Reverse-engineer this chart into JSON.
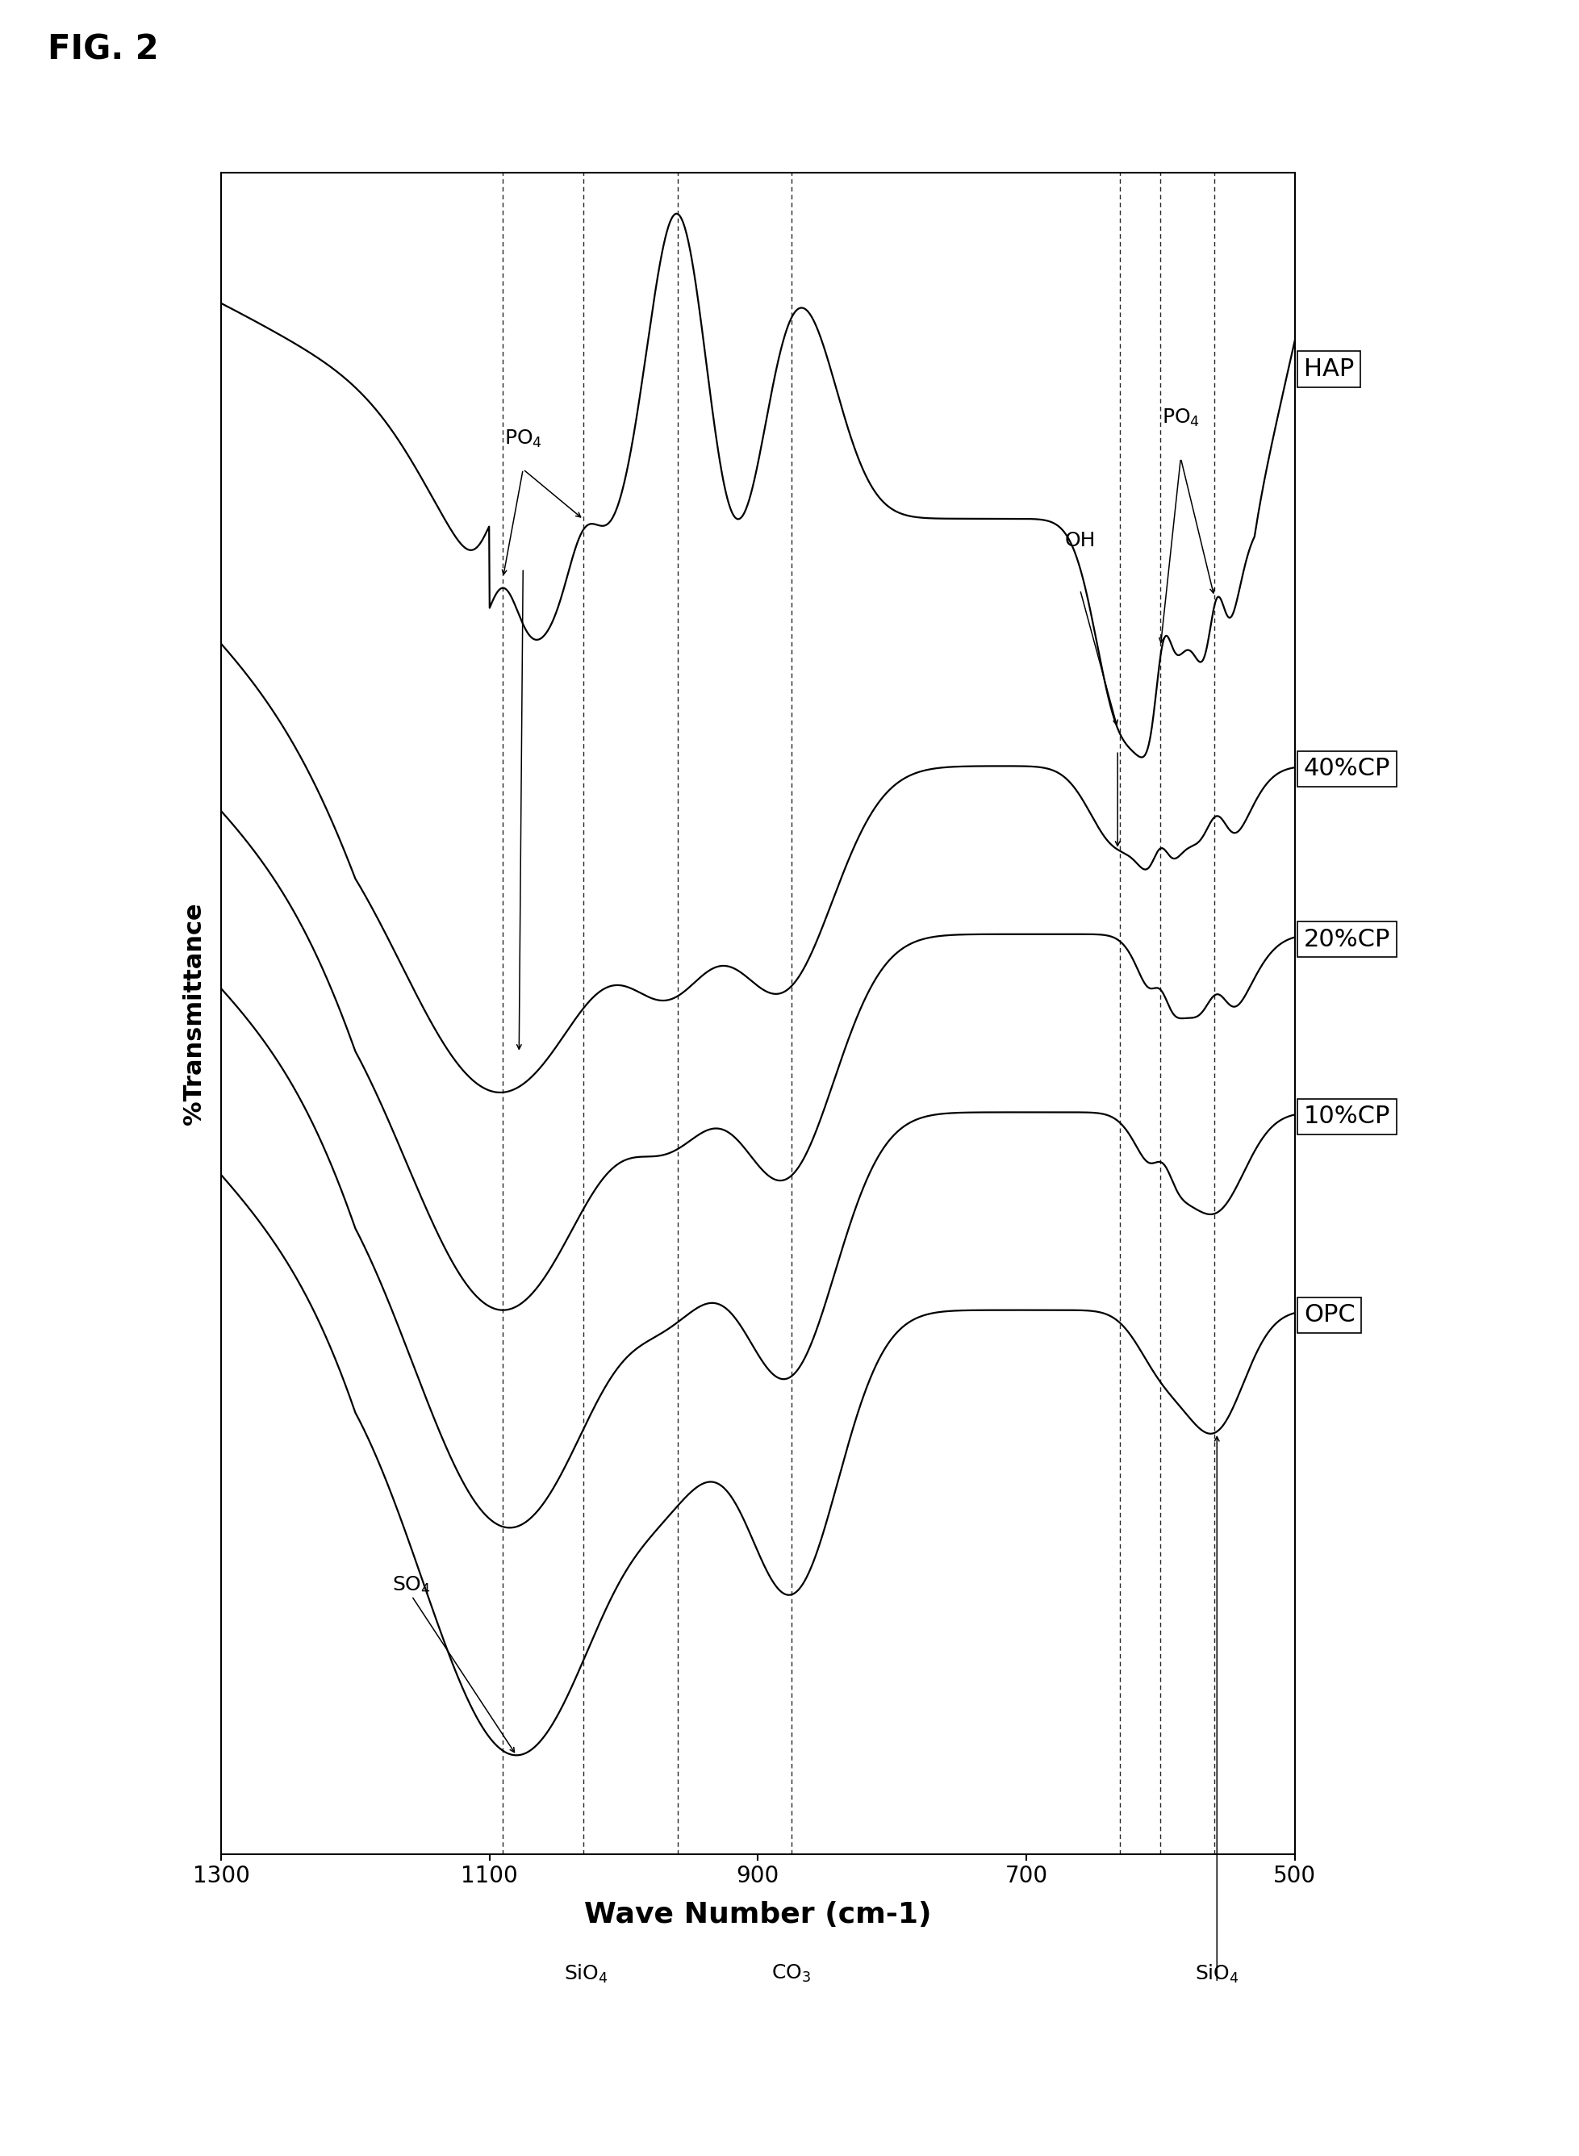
{
  "title": "FIG. 2",
  "xlabel": "Wave Number (cm-1)",
  "ylabel": "%Transmittance",
  "xlim": [
    1300,
    500
  ],
  "background_color": "#ffffff",
  "series_labels": [
    "HAP",
    "40%CP",
    "20%CP",
    "10%CP",
    "OPC"
  ],
  "xticks": [
    1300,
    1100,
    900,
    700,
    500
  ],
  "vlines": [
    1090,
    1030,
    960,
    875,
    630,
    600,
    560
  ],
  "fig2_label": "FIG. 2",
  "label_fontsize": 22,
  "tick_fontsize": 20,
  "xlabel_fontsize": 26,
  "ylabel_fontsize": 22
}
